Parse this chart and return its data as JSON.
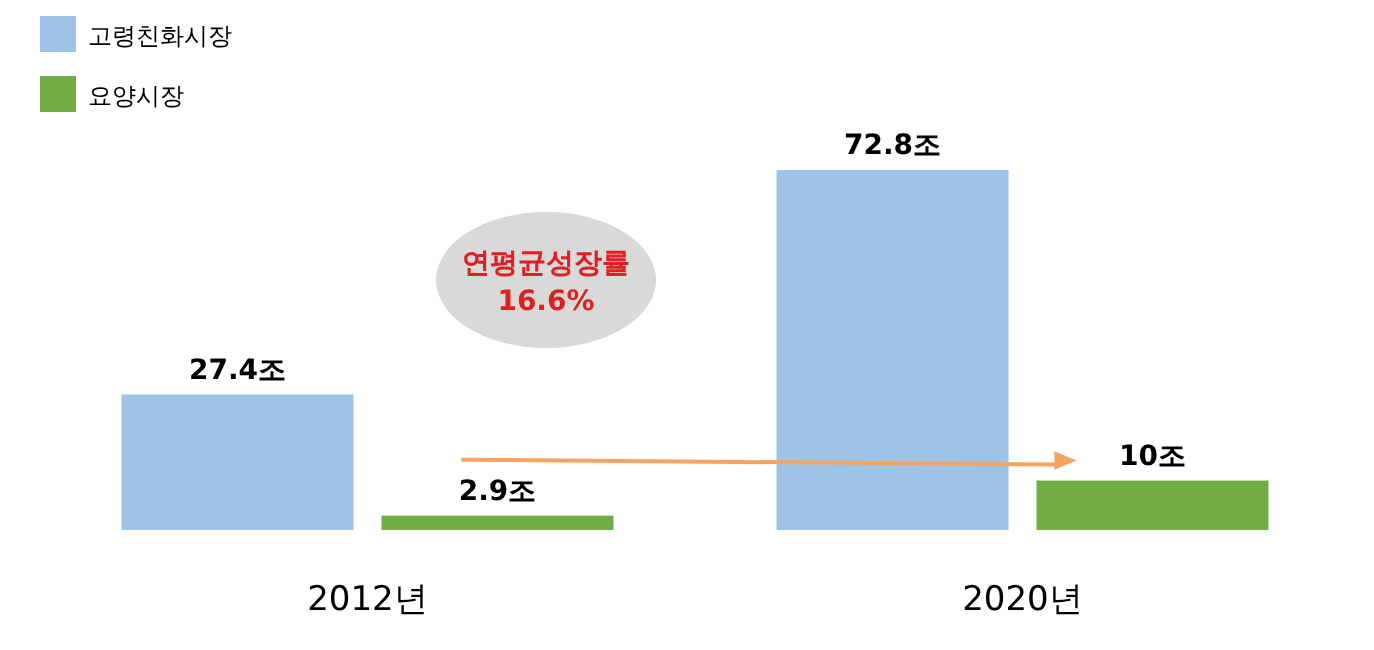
{
  "chart_data": {
    "type": "bar",
    "categories": [
      "2012년",
      "2020년"
    ],
    "series": [
      {
        "name": "고령친화시장",
        "color": "#9dc3e6",
        "values": [
          27.4,
          72.8
        ],
        "value_labels": [
          "27.4조",
          "72.8조"
        ]
      },
      {
        "name": "요양시장",
        "color": "#70ad47",
        "values": [
          2.9,
          10
        ],
        "value_labels": [
          "2.9조",
          "10조"
        ]
      }
    ],
    "legend": "top left",
    "annotations": [
      "연평균성장률\n16.6%"
    ]
  }
}
